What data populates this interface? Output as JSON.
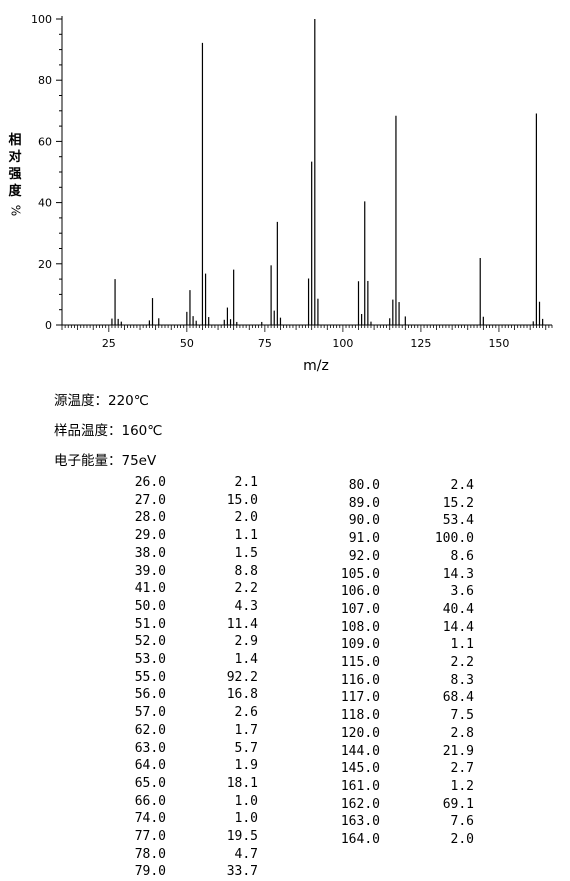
{
  "chart_data": {
    "type": "bar",
    "xlabel": "m/z",
    "ylabel": "相对强度",
    "ylabel_unit": "%",
    "xlim": [
      10,
      167
    ],
    "ylim": [
      0,
      100
    ],
    "xticks": [
      25,
      50,
      75,
      100,
      125,
      150
    ],
    "yticks": [
      0,
      20,
      40,
      60,
      80,
      100
    ],
    "grid": false,
    "color": "#000000",
    "peaks": [
      [
        26.0,
        2.1
      ],
      [
        27.0,
        15.0
      ],
      [
        28.0,
        2.0
      ],
      [
        29.0,
        1.1
      ],
      [
        38.0,
        1.5
      ],
      [
        39.0,
        8.8
      ],
      [
        41.0,
        2.2
      ],
      [
        50.0,
        4.3
      ],
      [
        51.0,
        11.4
      ],
      [
        52.0,
        2.9
      ],
      [
        53.0,
        1.4
      ],
      [
        55.0,
        92.2
      ],
      [
        56.0,
        16.8
      ],
      [
        57.0,
        2.6
      ],
      [
        62.0,
        1.7
      ],
      [
        63.0,
        5.7
      ],
      [
        64.0,
        1.9
      ],
      [
        65.0,
        18.1
      ],
      [
        66.0,
        1.0
      ],
      [
        74.0,
        1.0
      ],
      [
        77.0,
        19.5
      ],
      [
        78.0,
        4.7
      ],
      [
        79.0,
        33.7
      ],
      [
        80.0,
        2.4
      ],
      [
        89.0,
        15.2
      ],
      [
        90.0,
        53.4
      ],
      [
        91.0,
        100.0
      ],
      [
        92.0,
        8.6
      ],
      [
        105.0,
        14.3
      ],
      [
        106.0,
        3.6
      ],
      [
        107.0,
        40.4
      ],
      [
        108.0,
        14.4
      ],
      [
        109.0,
        1.1
      ],
      [
        115.0,
        2.2
      ],
      [
        116.0,
        8.3
      ],
      [
        117.0,
        68.4
      ],
      [
        118.0,
        7.5
      ],
      [
        120.0,
        2.8
      ],
      [
        144.0,
        21.9
      ],
      [
        145.0,
        2.7
      ],
      [
        161.0,
        1.2
      ],
      [
        162.0,
        69.1
      ],
      [
        163.0,
        7.6
      ],
      [
        164.0,
        2.0
      ]
    ]
  },
  "conditions": {
    "source_temp": "源温度：220℃",
    "sample_temp": "样品温度：160℃",
    "electron_energy": "电子能量：75eV"
  },
  "table_left": [
    [
      "26.0",
      "2.1"
    ],
    [
      "27.0",
      "15.0"
    ],
    [
      "28.0",
      "2.0"
    ],
    [
      "29.0",
      "1.1"
    ],
    [
      "38.0",
      "1.5"
    ],
    [
      "39.0",
      "8.8"
    ],
    [
      "41.0",
      "2.2"
    ],
    [
      "50.0",
      "4.3"
    ],
    [
      "51.0",
      "11.4"
    ],
    [
      "52.0",
      "2.9"
    ],
    [
      "53.0",
      "1.4"
    ],
    [
      "55.0",
      "92.2"
    ],
    [
      "56.0",
      "16.8"
    ],
    [
      "57.0",
      "2.6"
    ],
    [
      "62.0",
      "1.7"
    ],
    [
      "63.0",
      "5.7"
    ],
    [
      "64.0",
      "1.9"
    ],
    [
      "65.0",
      "18.1"
    ],
    [
      "66.0",
      "1.0"
    ],
    [
      "74.0",
      "1.0"
    ],
    [
      "77.0",
      "19.5"
    ],
    [
      "78.0",
      "4.7"
    ],
    [
      "79.0",
      "33.7"
    ]
  ],
  "table_right": [
    [
      "80.0",
      "2.4"
    ],
    [
      "89.0",
      "15.2"
    ],
    [
      "90.0",
      "53.4"
    ],
    [
      "91.0",
      "100.0"
    ],
    [
      "92.0",
      "8.6"
    ],
    [
      "105.0",
      "14.3"
    ],
    [
      "106.0",
      "3.6"
    ],
    [
      "107.0",
      "40.4"
    ],
    [
      "108.0",
      "14.4"
    ],
    [
      "109.0",
      "1.1"
    ],
    [
      "115.0",
      "2.2"
    ],
    [
      "116.0",
      "8.3"
    ],
    [
      "117.0",
      "68.4"
    ],
    [
      "118.0",
      "7.5"
    ],
    [
      "120.0",
      "2.8"
    ],
    [
      "144.0",
      "21.9"
    ],
    [
      "145.0",
      "2.7"
    ],
    [
      "161.0",
      "1.2"
    ],
    [
      "162.0",
      "69.1"
    ],
    [
      "163.0",
      "7.6"
    ],
    [
      "164.0",
      "2.0"
    ]
  ]
}
